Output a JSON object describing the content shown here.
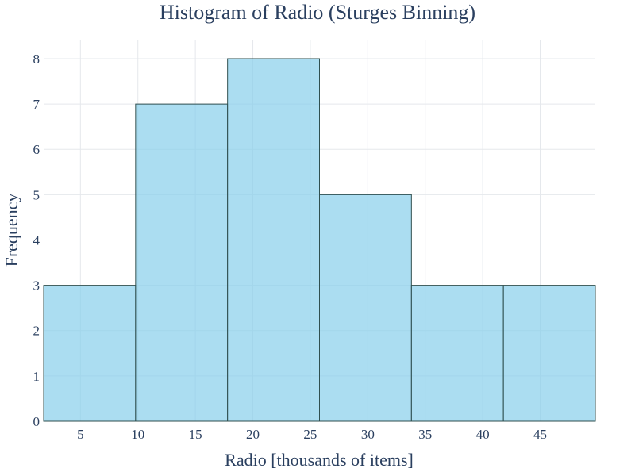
{
  "chart_data": {
    "type": "histogram",
    "title": "Histogram of Radio (Sturges Binning)",
    "xlabel": "Radio [thousands of items]",
    "ylabel": "Frequency",
    "bins": [
      {
        "start": 1.8,
        "end": 9.8,
        "count": 3
      },
      {
        "start": 9.8,
        "end": 17.8,
        "count": 7
      },
      {
        "start": 17.8,
        "end": 25.8,
        "count": 8
      },
      {
        "start": 25.8,
        "end": 33.8,
        "count": 5
      },
      {
        "start": 33.8,
        "end": 41.8,
        "count": 3
      },
      {
        "start": 41.8,
        "end": 49.8,
        "count": 3
      }
    ],
    "xlim": [
      1.8,
      49.8
    ],
    "ylim": [
      0,
      8.42
    ],
    "xticks": [
      5,
      10,
      15,
      20,
      25,
      30,
      35,
      40,
      45
    ],
    "yticks": [
      0,
      1,
      2,
      3,
      4,
      5,
      6,
      7,
      8
    ],
    "grid": true,
    "colors": {
      "bar_fill": "#87ceeb",
      "bar_outline": "#2f4f4f",
      "grid": "#e5e8ec",
      "text": "#2a3f5f"
    }
  }
}
